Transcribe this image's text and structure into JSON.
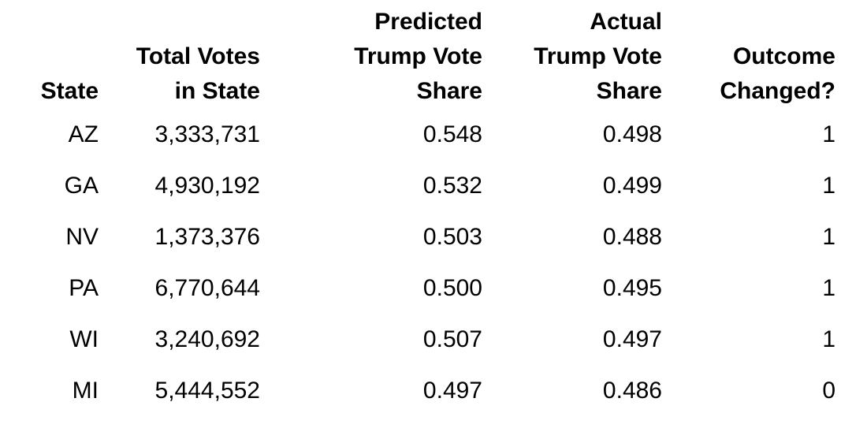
{
  "table": {
    "columns": [
      {
        "key": "state",
        "label": "State"
      },
      {
        "key": "total_votes",
        "label": "Total Votes\nin State"
      },
      {
        "key": "predicted_share",
        "label": "Predicted\nTrump Vote\nShare"
      },
      {
        "key": "actual_share",
        "label": "Actual\nTrump Vote\nShare"
      },
      {
        "key": "outcome_changed",
        "label": "Outcome\nChanged?"
      }
    ],
    "rows": [
      {
        "state": "AZ",
        "total_votes": "3,333,731",
        "predicted_share": "0.548",
        "actual_share": "0.498",
        "outcome_changed": "1"
      },
      {
        "state": "GA",
        "total_votes": "4,930,192",
        "predicted_share": "0.532",
        "actual_share": "0.499",
        "outcome_changed": "1"
      },
      {
        "state": "NV",
        "total_votes": "1,373,376",
        "predicted_share": "0.503",
        "actual_share": "0.488",
        "outcome_changed": "1"
      },
      {
        "state": "PA",
        "total_votes": "6,770,644",
        "predicted_share": "0.500",
        "actual_share": "0.495",
        "outcome_changed": "1"
      },
      {
        "state": "WI",
        "total_votes": "3,240,692",
        "predicted_share": "0.507",
        "actual_share": "0.497",
        "outcome_changed": "1"
      },
      {
        "state": "MI",
        "total_votes": "5,444,552",
        "predicted_share": "0.497",
        "actual_share": "0.486",
        "outcome_changed": "0"
      }
    ]
  },
  "chart_data": {
    "type": "table",
    "title": "",
    "columns": [
      "State",
      "Total Votes in State",
      "Predicted Trump Vote Share",
      "Actual Trump Vote Share",
      "Outcome Changed?"
    ],
    "rows": [
      [
        "AZ",
        3333731,
        0.548,
        0.498,
        1
      ],
      [
        "GA",
        4930192,
        0.532,
        0.499,
        1
      ],
      [
        "NV",
        1373376,
        0.503,
        0.488,
        1
      ],
      [
        "PA",
        6770644,
        0.5,
        0.495,
        1
      ],
      [
        "WI",
        3240692,
        0.507,
        0.497,
        1
      ],
      [
        "MI",
        5444552,
        0.497,
        0.486,
        0
      ]
    ]
  },
  "colors": {
    "background": "#ffffff",
    "text": "#000000"
  }
}
